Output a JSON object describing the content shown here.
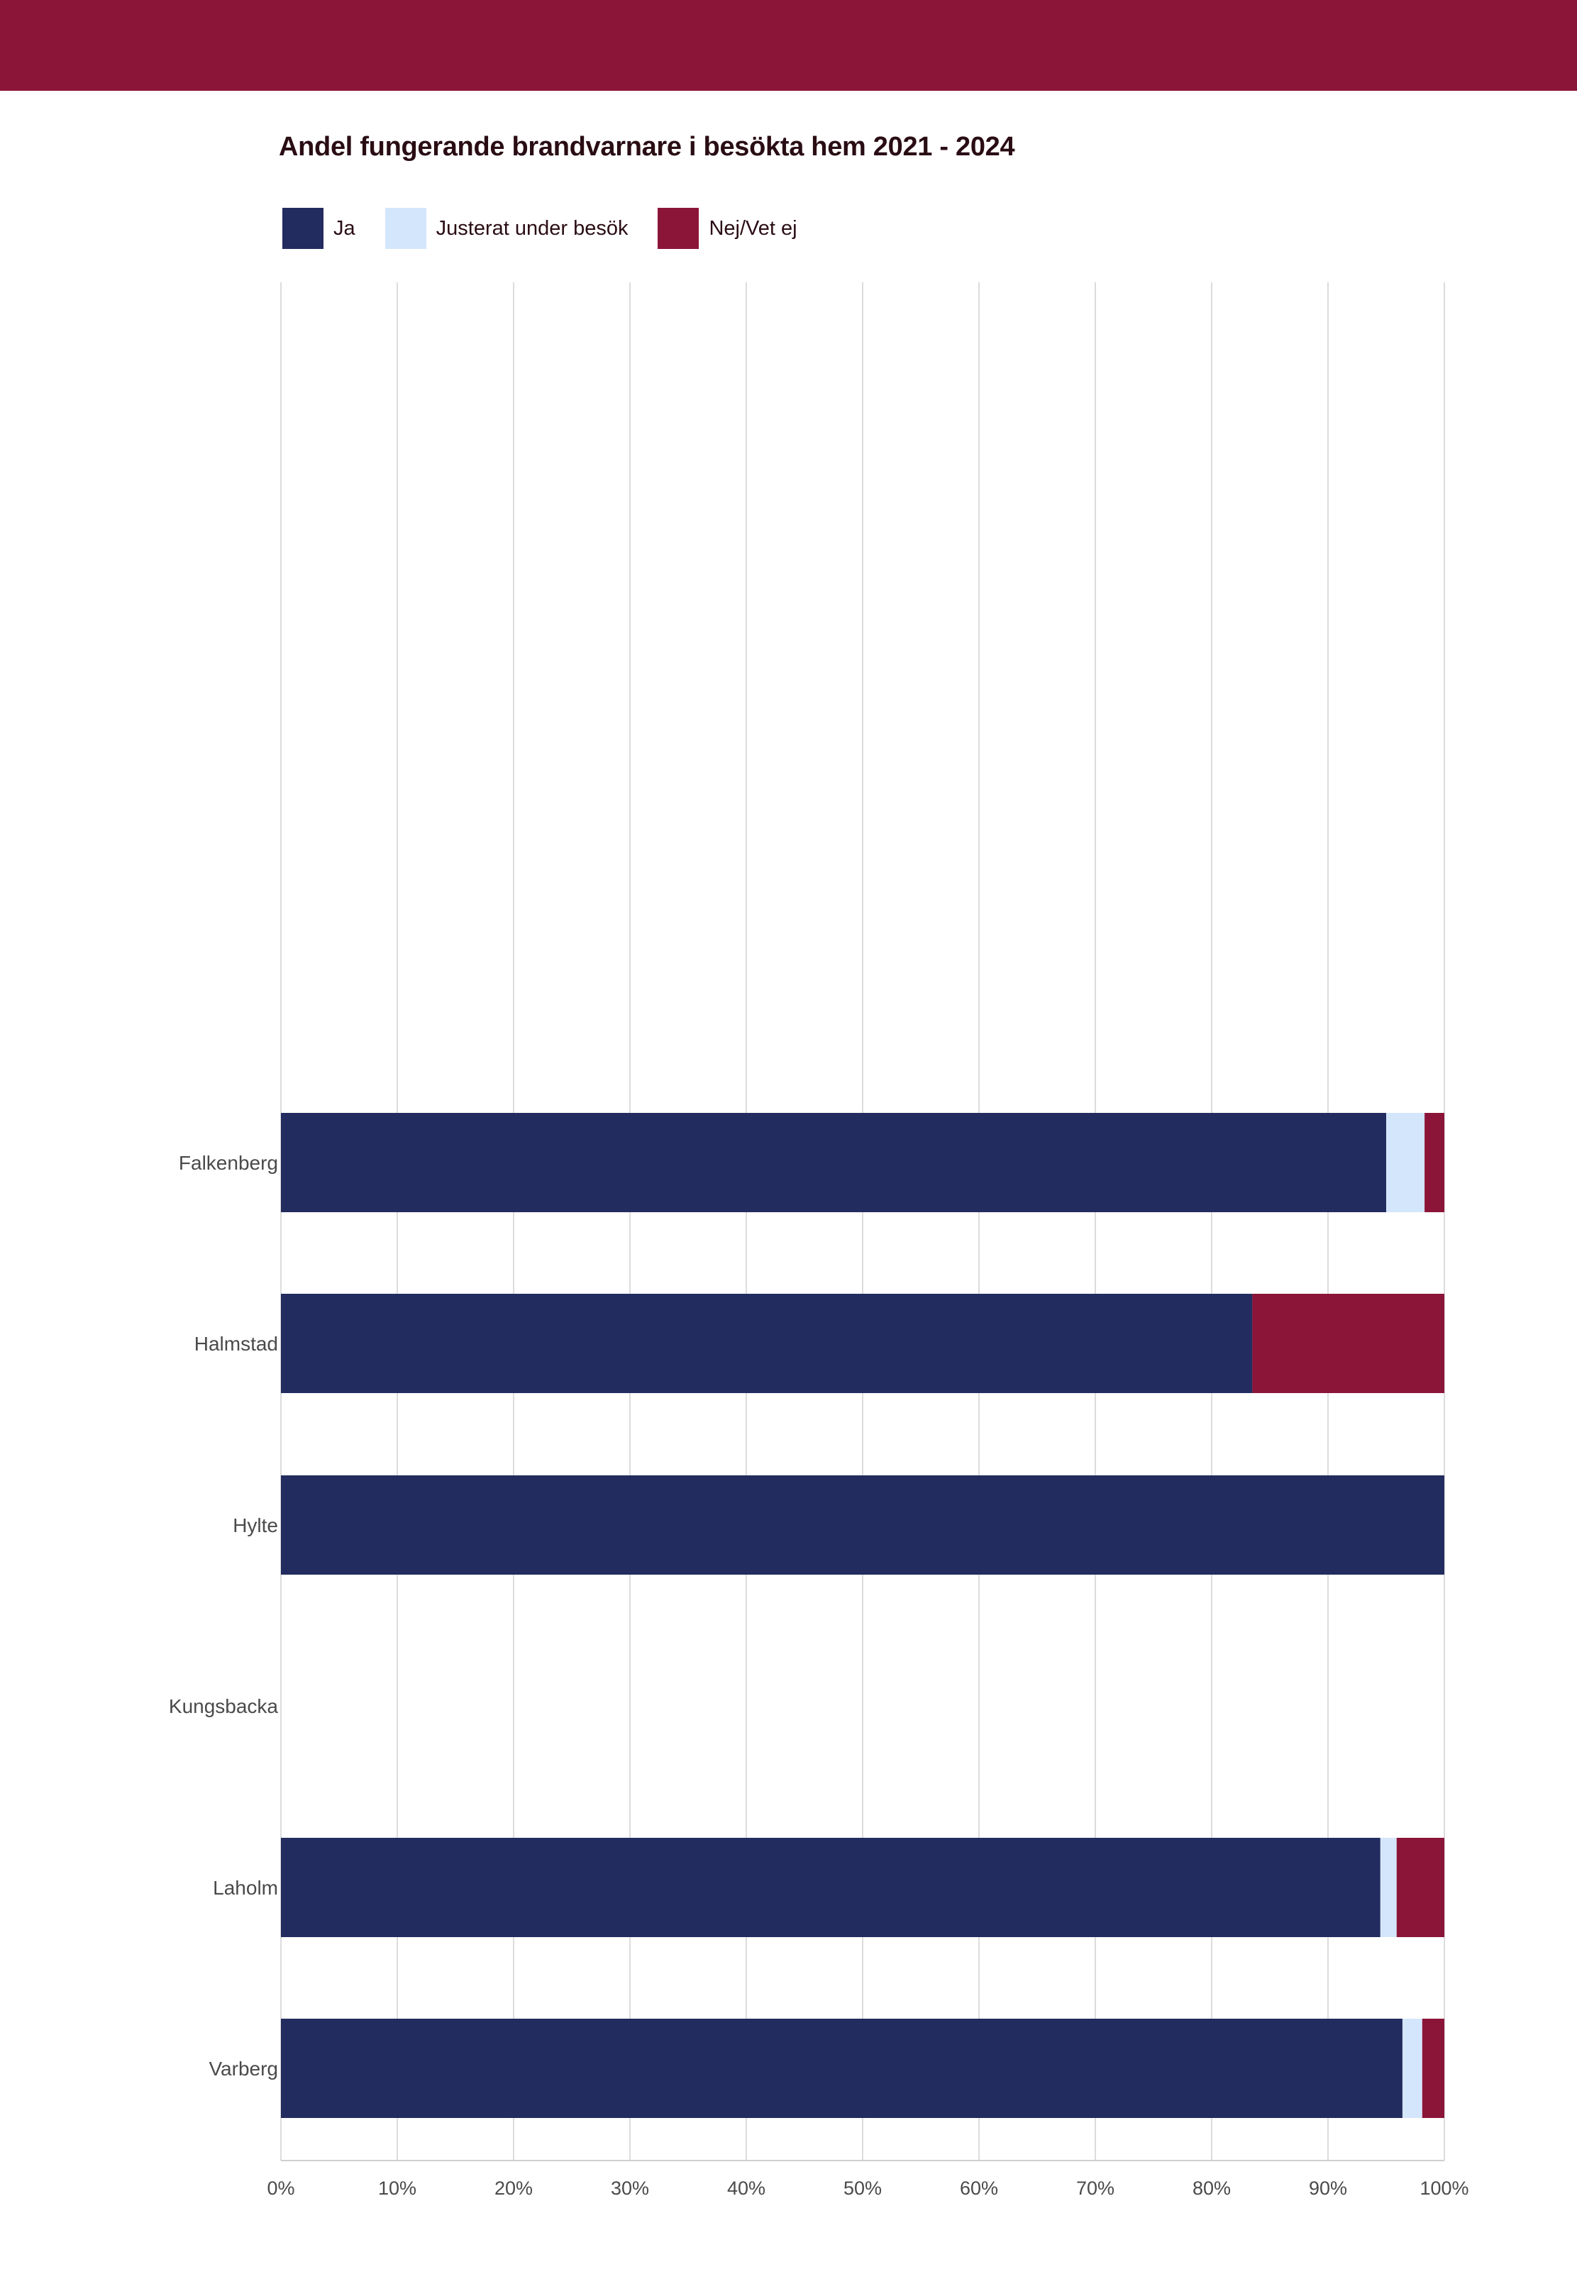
{
  "chart_data": {
    "type": "bar",
    "orientation": "horizontal",
    "stacked": true,
    "title": "Andel fungerande brandvarnare i besökta hem 2021 - 2024",
    "categories": [
      "Falkenberg",
      "Halmstad",
      "Hylte",
      "Kungsbacka",
      "Laholm",
      "Varberg"
    ],
    "series": [
      {
        "name": "Ja",
        "color": "#232c5f",
        "values": [
          95.0,
          83.5,
          100.0,
          null,
          94.5,
          96.4
        ]
      },
      {
        "name": "Justerat under besök",
        "color": "#d4e6fb",
        "values": [
          3.3,
          0.0,
          0.0,
          null,
          1.4,
          1.7
        ]
      },
      {
        "name": "Nej/Vet ej",
        "color": "#8b1538",
        "values": [
          1.7,
          16.5,
          0.0,
          null,
          4.1,
          1.9
        ]
      }
    ],
    "xlim": [
      0,
      100
    ],
    "x_ticks": [
      "0%",
      "10%",
      "20%",
      "30%",
      "40%",
      "50%",
      "60%",
      "70%",
      "80%",
      "90%",
      "100%"
    ],
    "grid": true,
    "legend_position": "top-left"
  }
}
